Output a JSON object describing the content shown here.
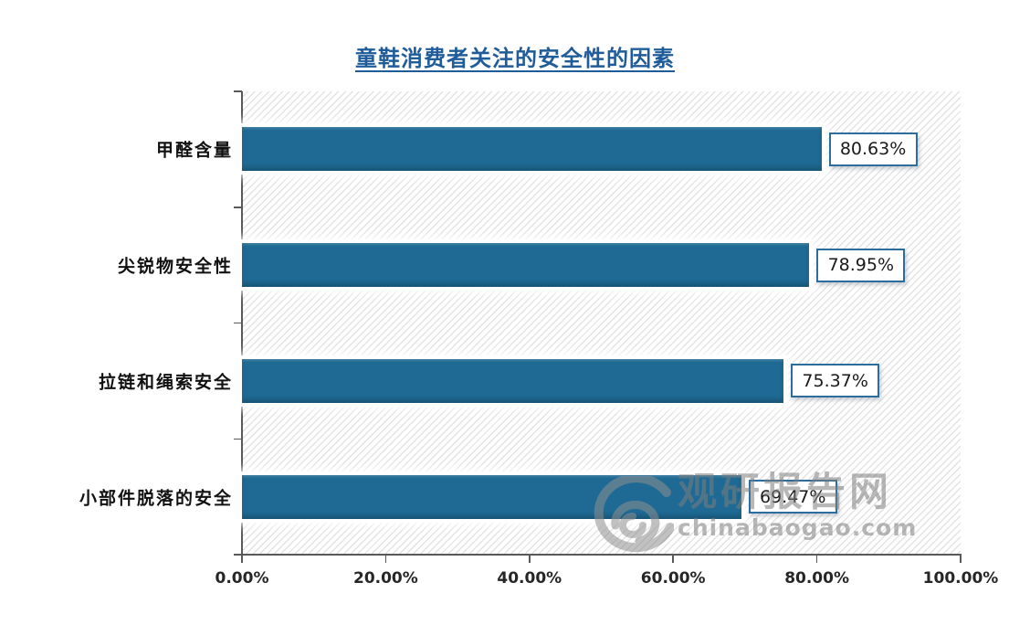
{
  "title": "童鞋消费者关注的安全性的因素",
  "chart_data": {
    "type": "bar",
    "orientation": "horizontal",
    "title": "童鞋消费者关注的安全性的因素",
    "categories": [
      "甲醛含量",
      "尖锐物安全性",
      "拉链和绳索安全",
      "小部件脱落的安全"
    ],
    "values": [
      80.63,
      78.95,
      75.37,
      69.47
    ],
    "value_labels": [
      "80.63%",
      "78.95%",
      "75.37%",
      "69.47%"
    ],
    "x_tick_labels": [
      "0.00%",
      "20.00%",
      "40.00%",
      "60.00%",
      "80.00%",
      "100.00%"
    ],
    "x_tick_values": [
      0,
      20,
      40,
      60,
      80,
      100
    ],
    "xlim": [
      0,
      100
    ],
    "xlabel": "",
    "ylabel": "",
    "grid": false,
    "legend": false,
    "bar_color": "#1e6a94",
    "plot_hatch": "diagonal",
    "value_box_border_color": "#2c6d9e",
    "axis_color": "#595959"
  },
  "watermark": {
    "name": "观研报告网",
    "domain": "chinabaogao.com",
    "color": "#7d7d7d"
  },
  "colors": {
    "title": "#1f5c99",
    "background": "#ffffff"
  }
}
